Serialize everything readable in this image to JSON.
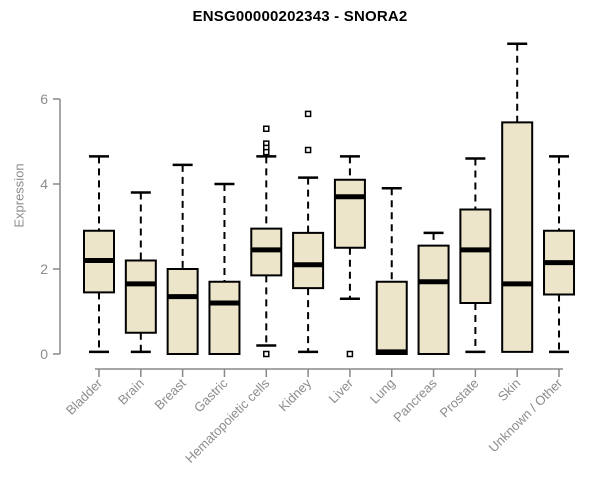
{
  "chart_data": {
    "type": "boxplot",
    "title": "ENSG00000202343 - SNORA2",
    "ylabel": "Expression",
    "xlabel": "",
    "yticks": [
      0,
      2,
      4,
      6
    ],
    "ylim": [
      0,
      7.4
    ],
    "grid": false,
    "legend": "none",
    "categories": [
      "Bladder",
      "Brain",
      "Breast",
      "Gastric",
      "Hematopoietic cells",
      "Kidney",
      "Liver",
      "Lung",
      "Pancreas",
      "Prostate",
      "Skin",
      "Unknown / Other"
    ],
    "boxes": [
      {
        "category": "Bladder",
        "whisker_low": 0.05,
        "q1": 1.45,
        "median": 2.2,
        "q3": 2.9,
        "whisker_high": 4.65,
        "outliers": []
      },
      {
        "category": "Brain",
        "whisker_low": 0.05,
        "q1": 0.5,
        "median": 1.65,
        "q3": 2.2,
        "whisker_high": 3.8,
        "outliers": []
      },
      {
        "category": "Breast",
        "whisker_low": 0,
        "q1": 0,
        "median": 1.35,
        "q3": 2.0,
        "whisker_high": 4.45,
        "outliers": []
      },
      {
        "category": "Gastric",
        "whisker_low": 0,
        "q1": 0,
        "median": 1.2,
        "q3": 1.7,
        "whisker_high": 4.0,
        "outliers": []
      },
      {
        "category": "Hematopoietic cells",
        "whisker_low": 0.2,
        "q1": 1.85,
        "median": 2.45,
        "q3": 2.95,
        "whisker_high": 4.65,
        "outliers": [
          5.3,
          4.95,
          4.85,
          4.75,
          0
        ]
      },
      {
        "category": "Kidney",
        "whisker_low": 0.05,
        "q1": 1.55,
        "median": 2.1,
        "q3": 2.85,
        "whisker_high": 4.15,
        "outliers": [
          5.65,
          4.8
        ]
      },
      {
        "category": "Liver",
        "whisker_low": 1.3,
        "q1": 2.5,
        "median": 3.7,
        "q3": 4.1,
        "whisker_high": 4.65,
        "outliers": [
          0
        ]
      },
      {
        "category": "Lung",
        "whisker_low": 0,
        "q1": 0,
        "median": 0.05,
        "q3": 1.7,
        "whisker_high": 3.9,
        "outliers": []
      },
      {
        "category": "Pancreas",
        "whisker_low": 0,
        "q1": 0,
        "median": 1.7,
        "q3": 2.55,
        "whisker_high": 2.85,
        "outliers": []
      },
      {
        "category": "Prostate",
        "whisker_low": 0.05,
        "q1": 1.2,
        "median": 2.45,
        "q3": 3.4,
        "whisker_high": 4.6,
        "outliers": []
      },
      {
        "category": "Skin",
        "whisker_low": 0.05,
        "q1": 0.05,
        "median": 1.65,
        "q3": 5.45,
        "whisker_high": 7.3,
        "outliers": []
      },
      {
        "category": "Unknown / Other",
        "whisker_low": 0.05,
        "q1": 1.4,
        "median": 2.15,
        "q3": 2.9,
        "whisker_high": 4.65,
        "outliers": []
      }
    ],
    "style": {
      "box_fill": "#ece5ca",
      "box_border": "#000000",
      "median_color": "#000000",
      "whisker_color": "#000000",
      "axis_color": "#888888",
      "label_color": "#8c8c8c",
      "title_color": "#000000",
      "background": "#ffffff"
    }
  }
}
